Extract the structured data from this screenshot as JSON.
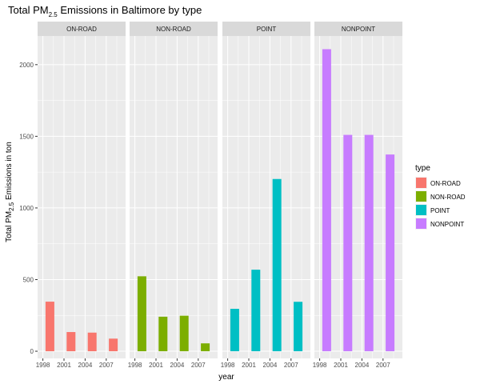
{
  "chart_data": {
    "type": "bar",
    "title": {
      "prefix": "Total PM",
      "sub": "2.5",
      "suffix": " Emissions in Baltimore by type"
    },
    "xlabel": "year",
    "ylabel": {
      "prefix": "Total PM",
      "sub": "2.5",
      "suffix": " Emissions in ton"
    },
    "x": [
      1999,
      2002,
      2005,
      2008
    ],
    "x_ticks": [
      "1998",
      "2001",
      "2004",
      "2007"
    ],
    "y_ticks": [
      "0",
      "500",
      "1000",
      "1500",
      "2000"
    ],
    "ylim": [
      -50,
      2200
    ],
    "grid": true,
    "legend_title": "type",
    "legend_position": "right",
    "facets": [
      {
        "name": "ON-ROAD",
        "color": "#F8766D",
        "values": [
          346,
          134,
          130,
          88
        ]
      },
      {
        "name": "NON-ROAD",
        "color": "#7CAE00",
        "values": [
          523,
          241,
          248,
          55
        ]
      },
      {
        "name": "POINT",
        "color": "#00BFC4",
        "values": [
          296,
          569,
          1202,
          345
        ]
      },
      {
        "name": "NONPOINT",
        "color": "#C77CFF",
        "values": [
          2108,
          1510,
          1510,
          1373
        ]
      }
    ]
  }
}
